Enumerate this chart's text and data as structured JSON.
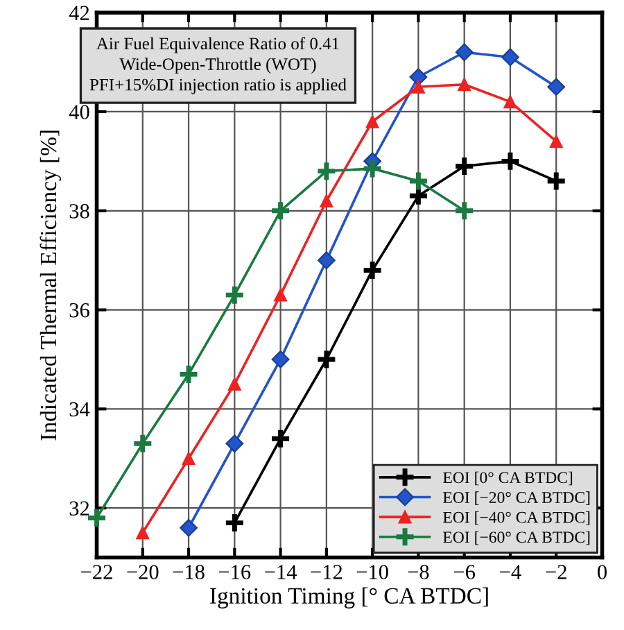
{
  "chart_data": {
    "type": "line",
    "xlabel": "Ignition Timing [° CA BTDC]",
    "ylabel": "Indicated Thermal Efficiency [%]",
    "annotations": [
      "Air Fuel Equivalence Ratio of 0.41\nWide-Open-Throttle (WOT)\nPFI+15%DI injection ratio is applied"
    ],
    "xlim": [
      -22,
      0
    ],
    "xticks": [
      {
        "value": -22,
        "label": "−22"
      },
      {
        "value": -20,
        "label": "−20"
      },
      {
        "value": -18,
        "label": "−18"
      },
      {
        "value": -16,
        "label": "−16"
      },
      {
        "value": -14,
        "label": "−14"
      },
      {
        "value": -12,
        "label": "−12"
      },
      {
        "value": -10,
        "label": "−10"
      },
      {
        "value": -8,
        "label": "−8"
      },
      {
        "value": -6,
        "label": "−6"
      },
      {
        "value": -4,
        "label": "−4"
      },
      {
        "value": -2,
        "label": "−2"
      },
      0
    ],
    "ylim": [
      31,
      42
    ],
    "yticks": [
      32,
      34,
      36,
      38,
      40,
      42
    ],
    "grid": true,
    "legend": "bottom right",
    "line_style": "solid",
    "series": [
      {
        "name": "EOI [0° CA BTDC]",
        "color": "#000000",
        "marker": "cross",
        "x": [
          -16,
          -14,
          -12,
          -10,
          -8,
          -6,
          -4,
          -2
        ],
        "values": [
          31.7,
          33.4,
          35.0,
          36.8,
          38.3,
          38.9,
          39.0,
          38.6
        ]
      },
      {
        "name": "EOI [−20° CA BTDC]",
        "color": "#2255cc",
        "marker": "diamond",
        "x": [
          -18,
          -16,
          -14,
          -12,
          -10,
          -8,
          -6,
          -4,
          -2
        ],
        "values": [
          31.6,
          33.3,
          35.0,
          37.0,
          39.0,
          40.7,
          41.2,
          41.1,
          40.5
        ]
      },
      {
        "name": "EOI [−40° CA BTDC]",
        "color": "#ee2222",
        "marker": "triangle",
        "x": [
          -20,
          -18,
          -16,
          -14,
          -12,
          -10,
          -8,
          -6,
          -4,
          -2
        ],
        "values": [
          31.5,
          33.0,
          34.5,
          36.3,
          38.2,
          39.8,
          40.5,
          40.55,
          40.2,
          39.4
        ]
      },
      {
        "name": "EOI [−60° CA BTDC]",
        "color": "#1a7a40",
        "marker": "cross",
        "x": [
          -22,
          -20,
          -18,
          -16,
          -14,
          -12,
          -10,
          -8,
          -6
        ],
        "values": [
          31.8,
          33.3,
          34.7,
          36.3,
          38.0,
          38.8,
          38.85,
          38.6,
          38.0
        ]
      }
    ]
  }
}
